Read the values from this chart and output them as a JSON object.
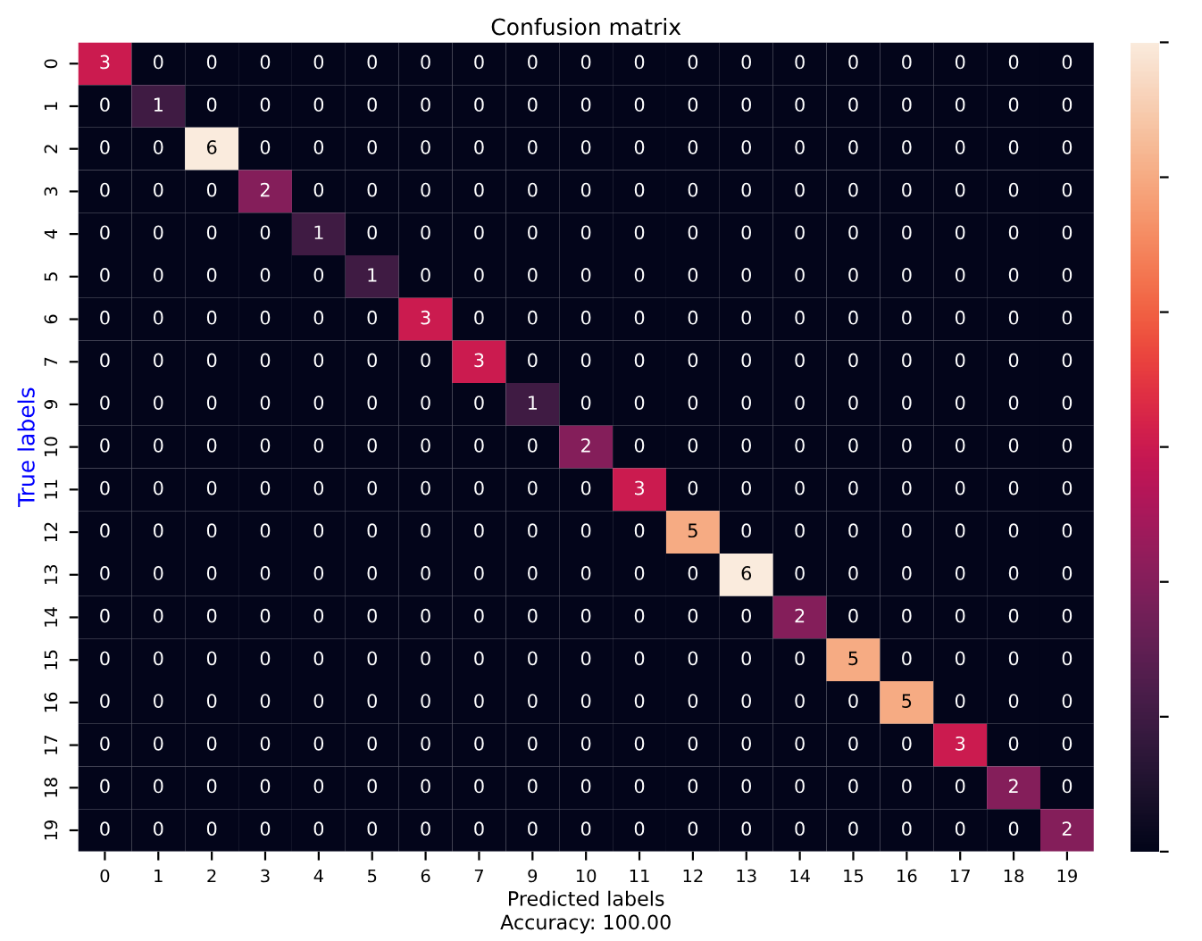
{
  "chart_data": {
    "type": "heatmap",
    "title": "Confusion matrix",
    "xlabel": "Predicted labels",
    "ylabel": "True labels",
    "annotations": [
      "Accuracy: 100.00"
    ],
    "categories": [
      "0",
      "1",
      "2",
      "3",
      "4",
      "5",
      "6",
      "7",
      "9",
      "10",
      "11",
      "12",
      "13",
      "14",
      "15",
      "16",
      "17",
      "18",
      "19"
    ],
    "y_categories": [
      "0",
      "1",
      "2",
      "3",
      "4",
      "5",
      "6",
      "7",
      "9",
      "10",
      "11",
      "12",
      "13",
      "14",
      "15",
      "16",
      "17",
      "18",
      "19"
    ],
    "cells": [
      [
        3,
        0,
        0,
        0,
        0,
        0,
        0,
        0,
        0,
        0,
        0,
        0,
        0,
        0,
        0,
        0,
        0,
        0,
        0
      ],
      [
        0,
        1,
        0,
        0,
        0,
        0,
        0,
        0,
        0,
        0,
        0,
        0,
        0,
        0,
        0,
        0,
        0,
        0,
        0
      ],
      [
        0,
        0,
        6,
        0,
        0,
        0,
        0,
        0,
        0,
        0,
        0,
        0,
        0,
        0,
        0,
        0,
        0,
        0,
        0
      ],
      [
        0,
        0,
        0,
        2,
        0,
        0,
        0,
        0,
        0,
        0,
        0,
        0,
        0,
        0,
        0,
        0,
        0,
        0,
        0
      ],
      [
        0,
        0,
        0,
        0,
        1,
        0,
        0,
        0,
        0,
        0,
        0,
        0,
        0,
        0,
        0,
        0,
        0,
        0,
        0
      ],
      [
        0,
        0,
        0,
        0,
        0,
        1,
        0,
        0,
        0,
        0,
        0,
        0,
        0,
        0,
        0,
        0,
        0,
        0,
        0
      ],
      [
        0,
        0,
        0,
        0,
        0,
        0,
        3,
        0,
        0,
        0,
        0,
        0,
        0,
        0,
        0,
        0,
        0,
        0,
        0
      ],
      [
        0,
        0,
        0,
        0,
        0,
        0,
        0,
        3,
        0,
        0,
        0,
        0,
        0,
        0,
        0,
        0,
        0,
        0,
        0
      ],
      [
        0,
        0,
        0,
        0,
        0,
        0,
        0,
        0,
        1,
        0,
        0,
        0,
        0,
        0,
        0,
        0,
        0,
        0,
        0
      ],
      [
        0,
        0,
        0,
        0,
        0,
        0,
        0,
        0,
        0,
        2,
        0,
        0,
        0,
        0,
        0,
        0,
        0,
        0,
        0
      ],
      [
        0,
        0,
        0,
        0,
        0,
        0,
        0,
        0,
        0,
        0,
        3,
        0,
        0,
        0,
        0,
        0,
        0,
        0,
        0
      ],
      [
        0,
        0,
        0,
        0,
        0,
        0,
        0,
        0,
        0,
        0,
        0,
        5,
        0,
        0,
        0,
        0,
        0,
        0,
        0
      ],
      [
        0,
        0,
        0,
        0,
        0,
        0,
        0,
        0,
        0,
        0,
        0,
        0,
        6,
        0,
        0,
        0,
        0,
        0,
        0
      ],
      [
        0,
        0,
        0,
        0,
        0,
        0,
        0,
        0,
        0,
        0,
        0,
        0,
        0,
        2,
        0,
        0,
        0,
        0,
        0
      ],
      [
        0,
        0,
        0,
        0,
        0,
        0,
        0,
        0,
        0,
        0,
        0,
        0,
        0,
        0,
        5,
        0,
        0,
        0,
        0
      ],
      [
        0,
        0,
        0,
        0,
        0,
        0,
        0,
        0,
        0,
        0,
        0,
        0,
        0,
        0,
        0,
        5,
        0,
        0,
        0
      ],
      [
        0,
        0,
        0,
        0,
        0,
        0,
        0,
        0,
        0,
        0,
        0,
        0,
        0,
        0,
        0,
        0,
        3,
        0,
        0
      ],
      [
        0,
        0,
        0,
        0,
        0,
        0,
        0,
        0,
        0,
        0,
        0,
        0,
        0,
        0,
        0,
        0,
        0,
        2,
        0
      ],
      [
        0,
        0,
        0,
        0,
        0,
        0,
        0,
        0,
        0,
        0,
        0,
        0,
        0,
        0,
        0,
        0,
        0,
        0,
        2
      ]
    ],
    "data_labels": true
  }
}
